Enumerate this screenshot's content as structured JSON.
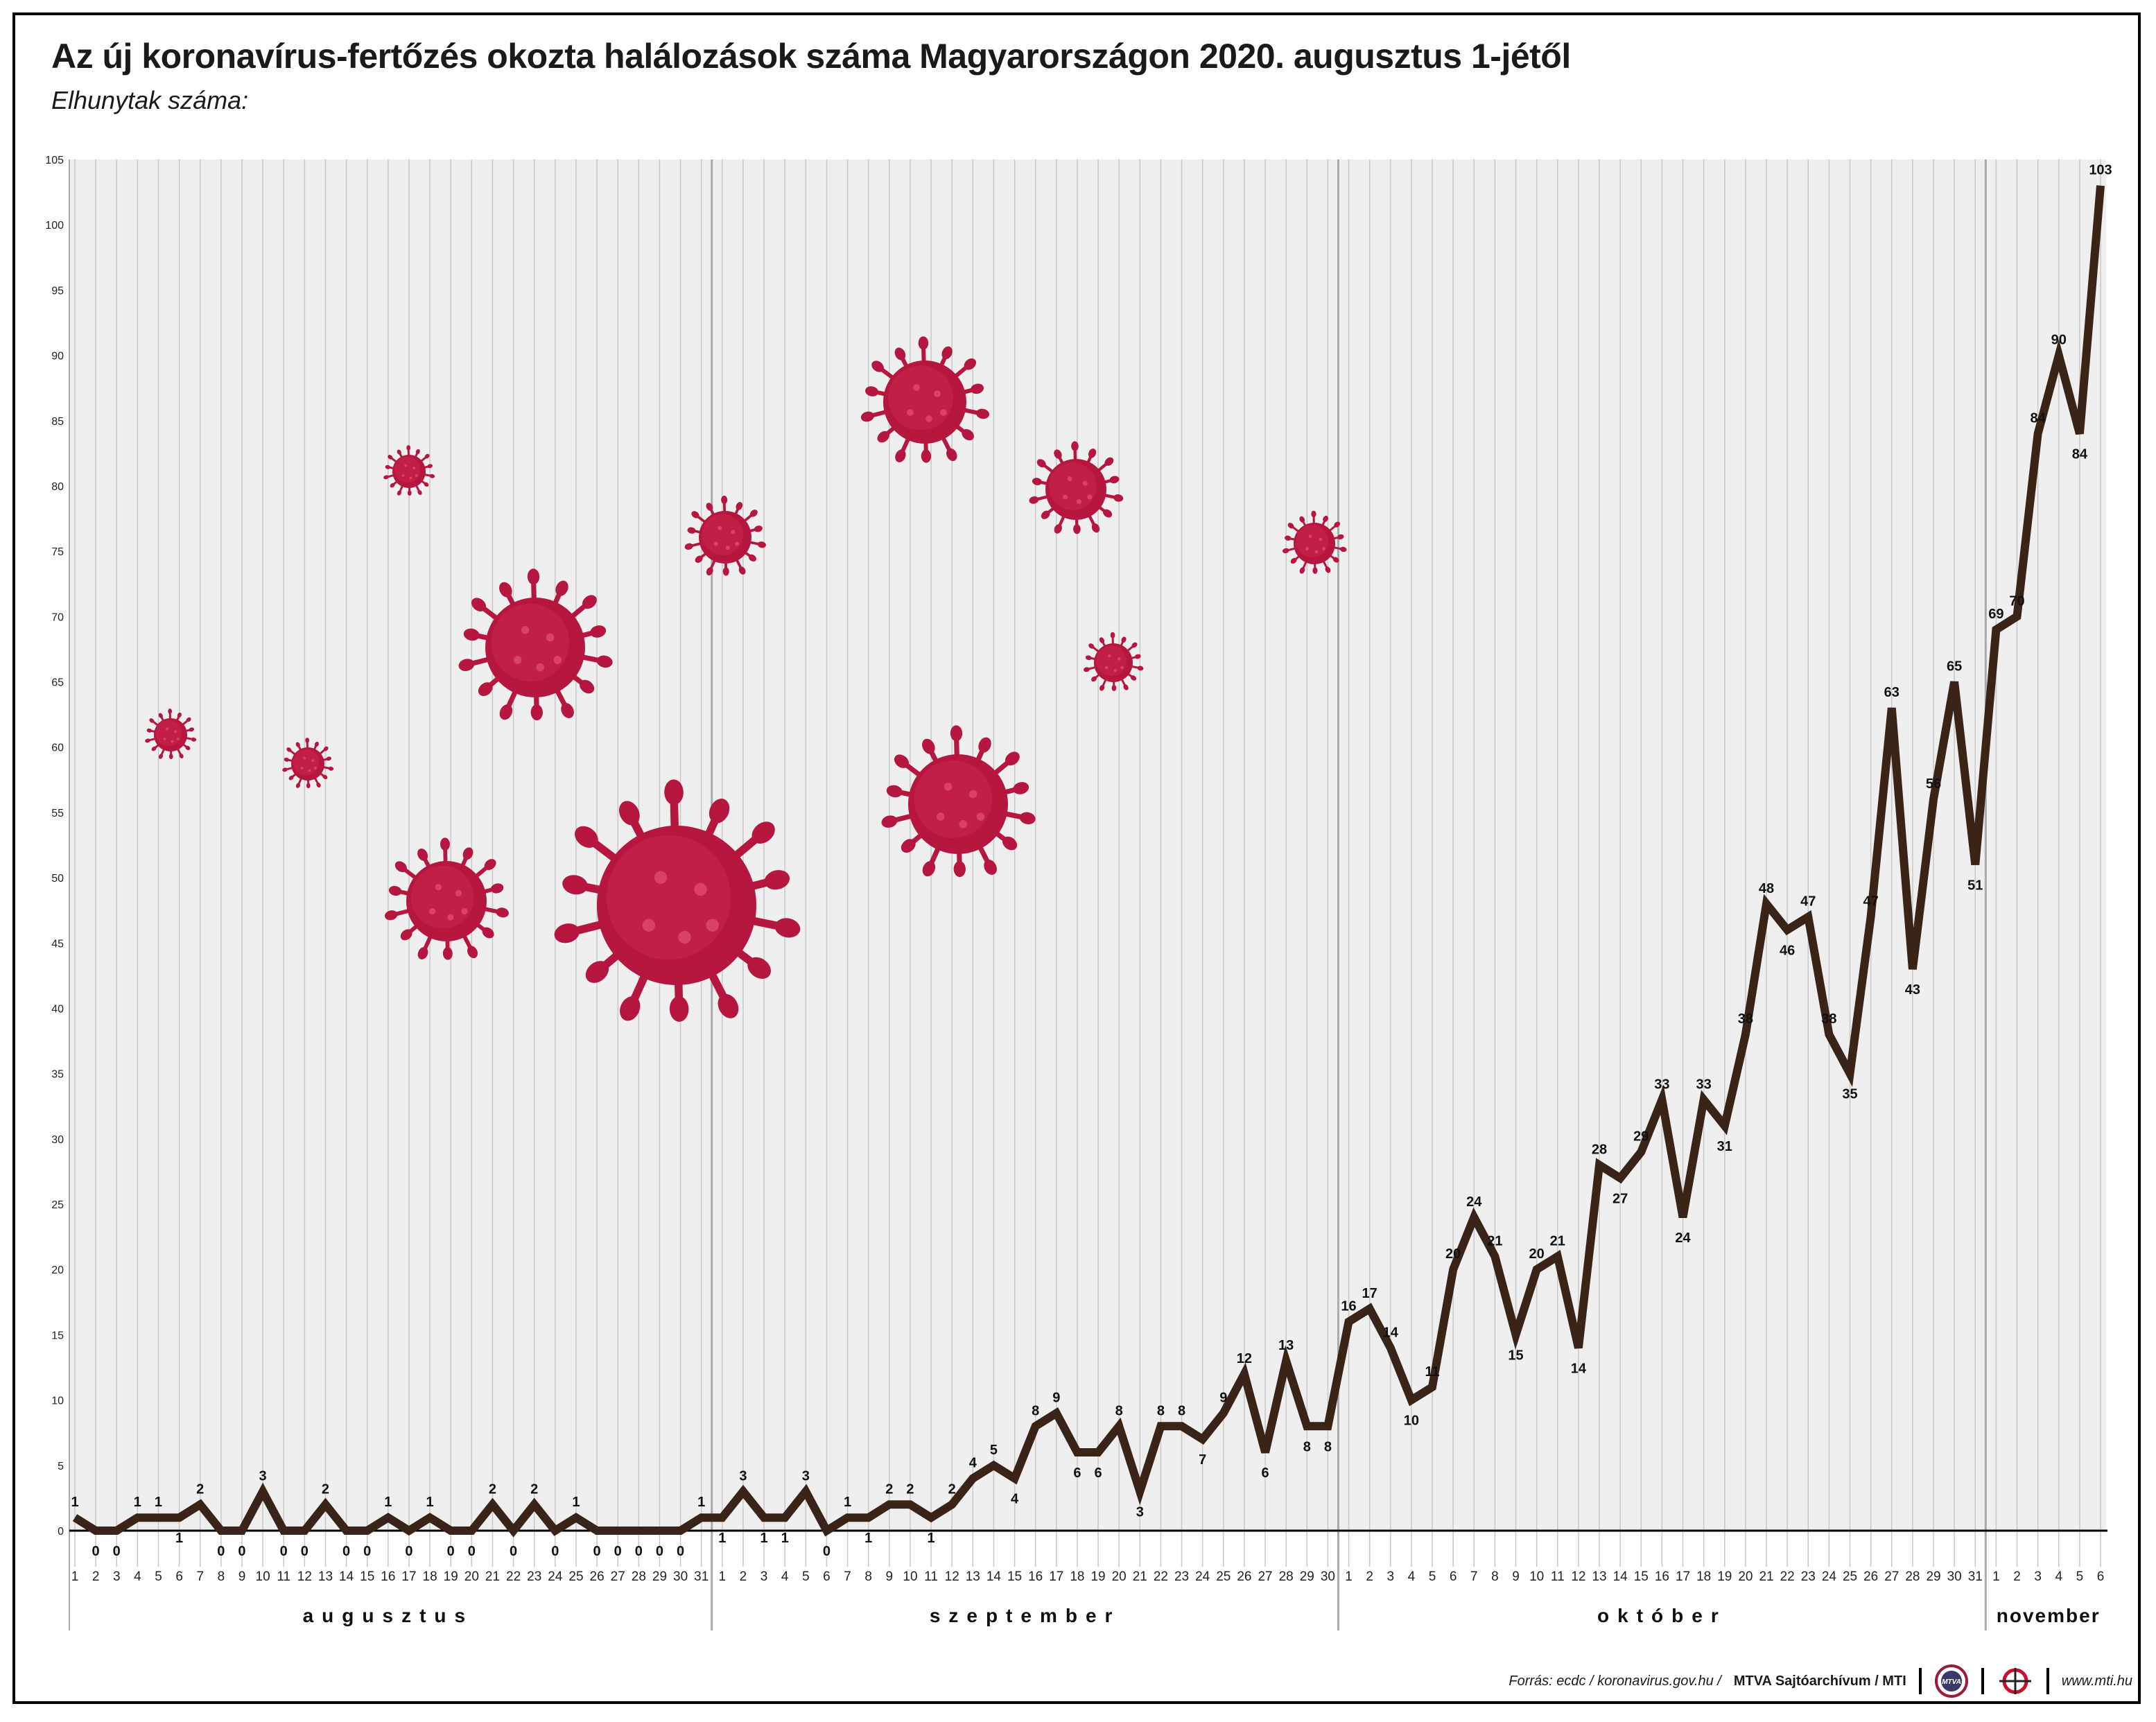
{
  "title": "Az új koronavírus-fertőzés okozta halálozások száma Magyarországon 2020. augusztus 1-jétől",
  "subtitle": "Elhunytak száma:",
  "footer": {
    "source": "Forrás: ecdc / koronavirus.gov.hu /",
    "credit": "MTVA Sajtóarchívum / MTI",
    "website": "www.mti.hu",
    "logo_text": "MTVA"
  },
  "colors": {
    "line": "#3a2418",
    "virus": "#b5173f",
    "band": "#efefef",
    "grid": "#c8c8c8"
  },
  "chart_data": {
    "type": "line",
    "ylim": [
      0,
      105
    ],
    "yticks": [
      0,
      5,
      10,
      15,
      20,
      25,
      30,
      35,
      40,
      45,
      50,
      55,
      60,
      65,
      70,
      75,
      80,
      85,
      90,
      95,
      100,
      105
    ],
    "grid": true,
    "months": [
      {
        "name": "augusztus",
        "days": 31
      },
      {
        "name": "szeptember",
        "days": 30
      },
      {
        "name": "október",
        "days": 31
      },
      {
        "name": "november",
        "days": 6
      }
    ],
    "x_start": "2020-08-01",
    "x_end": "2020-11-06",
    "values": [
      1,
      0,
      0,
      1,
      1,
      1,
      2,
      0,
      0,
      3,
      0,
      0,
      2,
      0,
      0,
      1,
      0,
      1,
      0,
      0,
      2,
      0,
      2,
      0,
      1,
      0,
      0,
      0,
      0,
      0,
      1,
      1,
      3,
      1,
      1,
      3,
      0,
      1,
      1,
      2,
      2,
      1,
      2,
      4,
      5,
      4,
      8,
      9,
      6,
      6,
      8,
      3,
      8,
      8,
      7,
      9,
      12,
      6,
      13,
      8,
      8,
      16,
      17,
      14,
      10,
      11,
      20,
      24,
      21,
      15,
      20,
      21,
      14,
      28,
      27,
      29,
      33,
      24,
      33,
      31,
      38,
      48,
      46,
      47,
      38,
      35,
      47,
      63,
      43,
      56,
      65,
      51,
      69,
      70,
      84,
      90,
      84,
      103
    ],
    "labeled_points": [
      {
        "date": "2020-08-01",
        "value": 1
      },
      {
        "date": "2020-08-02",
        "value": 0
      },
      {
        "date": "2020-08-03",
        "value": 0
      },
      {
        "date": "2020-08-04",
        "value": 1
      },
      {
        "date": "2020-08-05",
        "value": 1
      },
      {
        "date": "2020-08-06",
        "value": 1
      },
      {
        "date": "2020-08-07",
        "value": 2
      },
      {
        "date": "2020-08-08",
        "value": 0
      },
      {
        "date": "2020-08-09",
        "value": 0
      },
      {
        "date": "2020-08-10",
        "value": 3
      },
      {
        "date": "2020-08-11",
        "value": 0
      },
      {
        "date": "2020-08-12",
        "value": 0
      },
      {
        "date": "2020-08-13",
        "value": 2
      },
      {
        "date": "2020-08-14",
        "value": 0
      },
      {
        "date": "2020-08-15",
        "value": 0
      },
      {
        "date": "2020-08-16",
        "value": 1
      },
      {
        "date": "2020-08-17",
        "value": 0
      },
      {
        "date": "2020-08-18",
        "value": 1
      },
      {
        "date": "2020-08-19",
        "value": 0
      },
      {
        "date": "2020-08-20",
        "value": 0
      },
      {
        "date": "2020-08-21",
        "value": 2
      },
      {
        "date": "2020-08-22",
        "value": 0
      },
      {
        "date": "2020-08-23",
        "value": 2
      },
      {
        "date": "2020-08-24",
        "value": 0
      },
      {
        "date": "2020-08-25",
        "value": 1
      },
      {
        "date": "2020-08-26",
        "value": 0
      },
      {
        "date": "2020-08-27",
        "value": 0
      },
      {
        "date": "2020-08-28",
        "value": 0
      },
      {
        "date": "2020-08-29",
        "value": 0
      },
      {
        "date": "2020-08-30",
        "value": 0
      },
      {
        "date": "2020-08-31",
        "value": 1
      },
      {
        "date": "2020-09-01",
        "value": 1
      },
      {
        "date": "2020-09-02",
        "value": 3
      },
      {
        "date": "2020-09-03",
        "value": 1
      },
      {
        "date": "2020-09-04",
        "value": 1
      },
      {
        "date": "2020-09-05",
        "value": 3
      },
      {
        "date": "2020-09-06",
        "value": 0
      },
      {
        "date": "2020-09-07",
        "value": 1
      },
      {
        "date": "2020-09-08",
        "value": 1
      },
      {
        "date": "2020-09-09",
        "value": 2
      },
      {
        "date": "2020-09-10",
        "value": 2
      },
      {
        "date": "2020-09-11",
        "value": 1
      },
      {
        "date": "2020-09-12",
        "value": 2
      },
      {
        "date": "2020-09-13",
        "value": 4
      },
      {
        "date": "2020-09-14",
        "value": 5
      },
      {
        "date": "2020-09-15",
        "value": 4
      },
      {
        "date": "2020-09-16",
        "value": 8
      },
      {
        "date": "2020-09-17",
        "value": 9
      },
      {
        "date": "2020-09-18",
        "value": 6
      },
      {
        "date": "2020-09-19",
        "value": 6
      },
      {
        "date": "2020-09-20",
        "value": 8
      },
      {
        "date": "2020-09-21",
        "value": 3
      },
      {
        "date": "2020-09-22",
        "value": 8
      },
      {
        "date": "2020-09-23",
        "value": 8
      },
      {
        "date": "2020-09-24",
        "value": 7
      },
      {
        "date": "2020-09-25",
        "value": 9
      },
      {
        "date": "2020-09-26",
        "value": 12
      },
      {
        "date": "2020-09-27",
        "value": 6
      },
      {
        "date": "2020-09-28",
        "value": 13
      },
      {
        "date": "2020-09-29",
        "value": 8
      },
      {
        "date": "2020-09-30",
        "value": 8
      },
      {
        "date": "2020-10-01",
        "value": 16
      },
      {
        "date": "2020-10-02",
        "value": 17
      },
      {
        "date": "2020-10-03",
        "value": 14
      },
      {
        "date": "2020-10-04",
        "value": 10
      },
      {
        "date": "2020-10-05",
        "value": 11
      },
      {
        "date": "2020-10-06",
        "value": 20
      },
      {
        "date": "2020-10-07",
        "value": 24
      },
      {
        "date": "2020-10-08",
        "value": 21
      },
      {
        "date": "2020-10-09",
        "value": 15
      },
      {
        "date": "2020-10-10",
        "value": 20
      },
      {
        "date": "2020-10-11",
        "value": 21
      },
      {
        "date": "2020-10-12",
        "value": 14
      },
      {
        "date": "2020-10-13",
        "value": 28
      },
      {
        "date": "2020-10-14",
        "value": 27
      },
      {
        "date": "2020-10-15",
        "value": 29
      },
      {
        "date": "2020-10-16",
        "value": 33
      },
      {
        "date": "2020-10-17",
        "value": 24
      },
      {
        "date": "2020-10-18",
        "value": 33
      },
      {
        "date": "2020-10-19",
        "value": 31
      },
      {
        "date": "2020-10-20",
        "value": 38
      },
      {
        "date": "2020-10-21",
        "value": 48
      },
      {
        "date": "2020-10-22",
        "value": 46
      },
      {
        "date": "2020-10-23",
        "value": 47
      },
      {
        "date": "2020-10-24",
        "value": 38
      },
      {
        "date": "2020-10-25",
        "value": 35
      },
      {
        "date": "2020-10-26",
        "value": 47
      },
      {
        "date": "2020-10-27",
        "value": 63
      },
      {
        "date": "2020-10-28",
        "value": 43
      },
      {
        "date": "2020-10-29",
        "value": 56
      },
      {
        "date": "2020-10-30",
        "value": 65
      },
      {
        "date": "2020-10-31",
        "value": 51
      },
      {
        "date": "2020-11-01",
        "value": 69
      },
      {
        "date": "2020-11-02",
        "value": 70
      },
      {
        "date": "2020-11-03",
        "value": 84
      },
      {
        "date": "2020-11-04",
        "value": 90
      },
      {
        "date": "2020-11-05",
        "value": 84
      },
      {
        "date": "2020-11-06",
        "value": 103
      }
    ]
  },
  "decorations": {
    "virus_icons": [
      "coronavirus-icon"
    ]
  }
}
